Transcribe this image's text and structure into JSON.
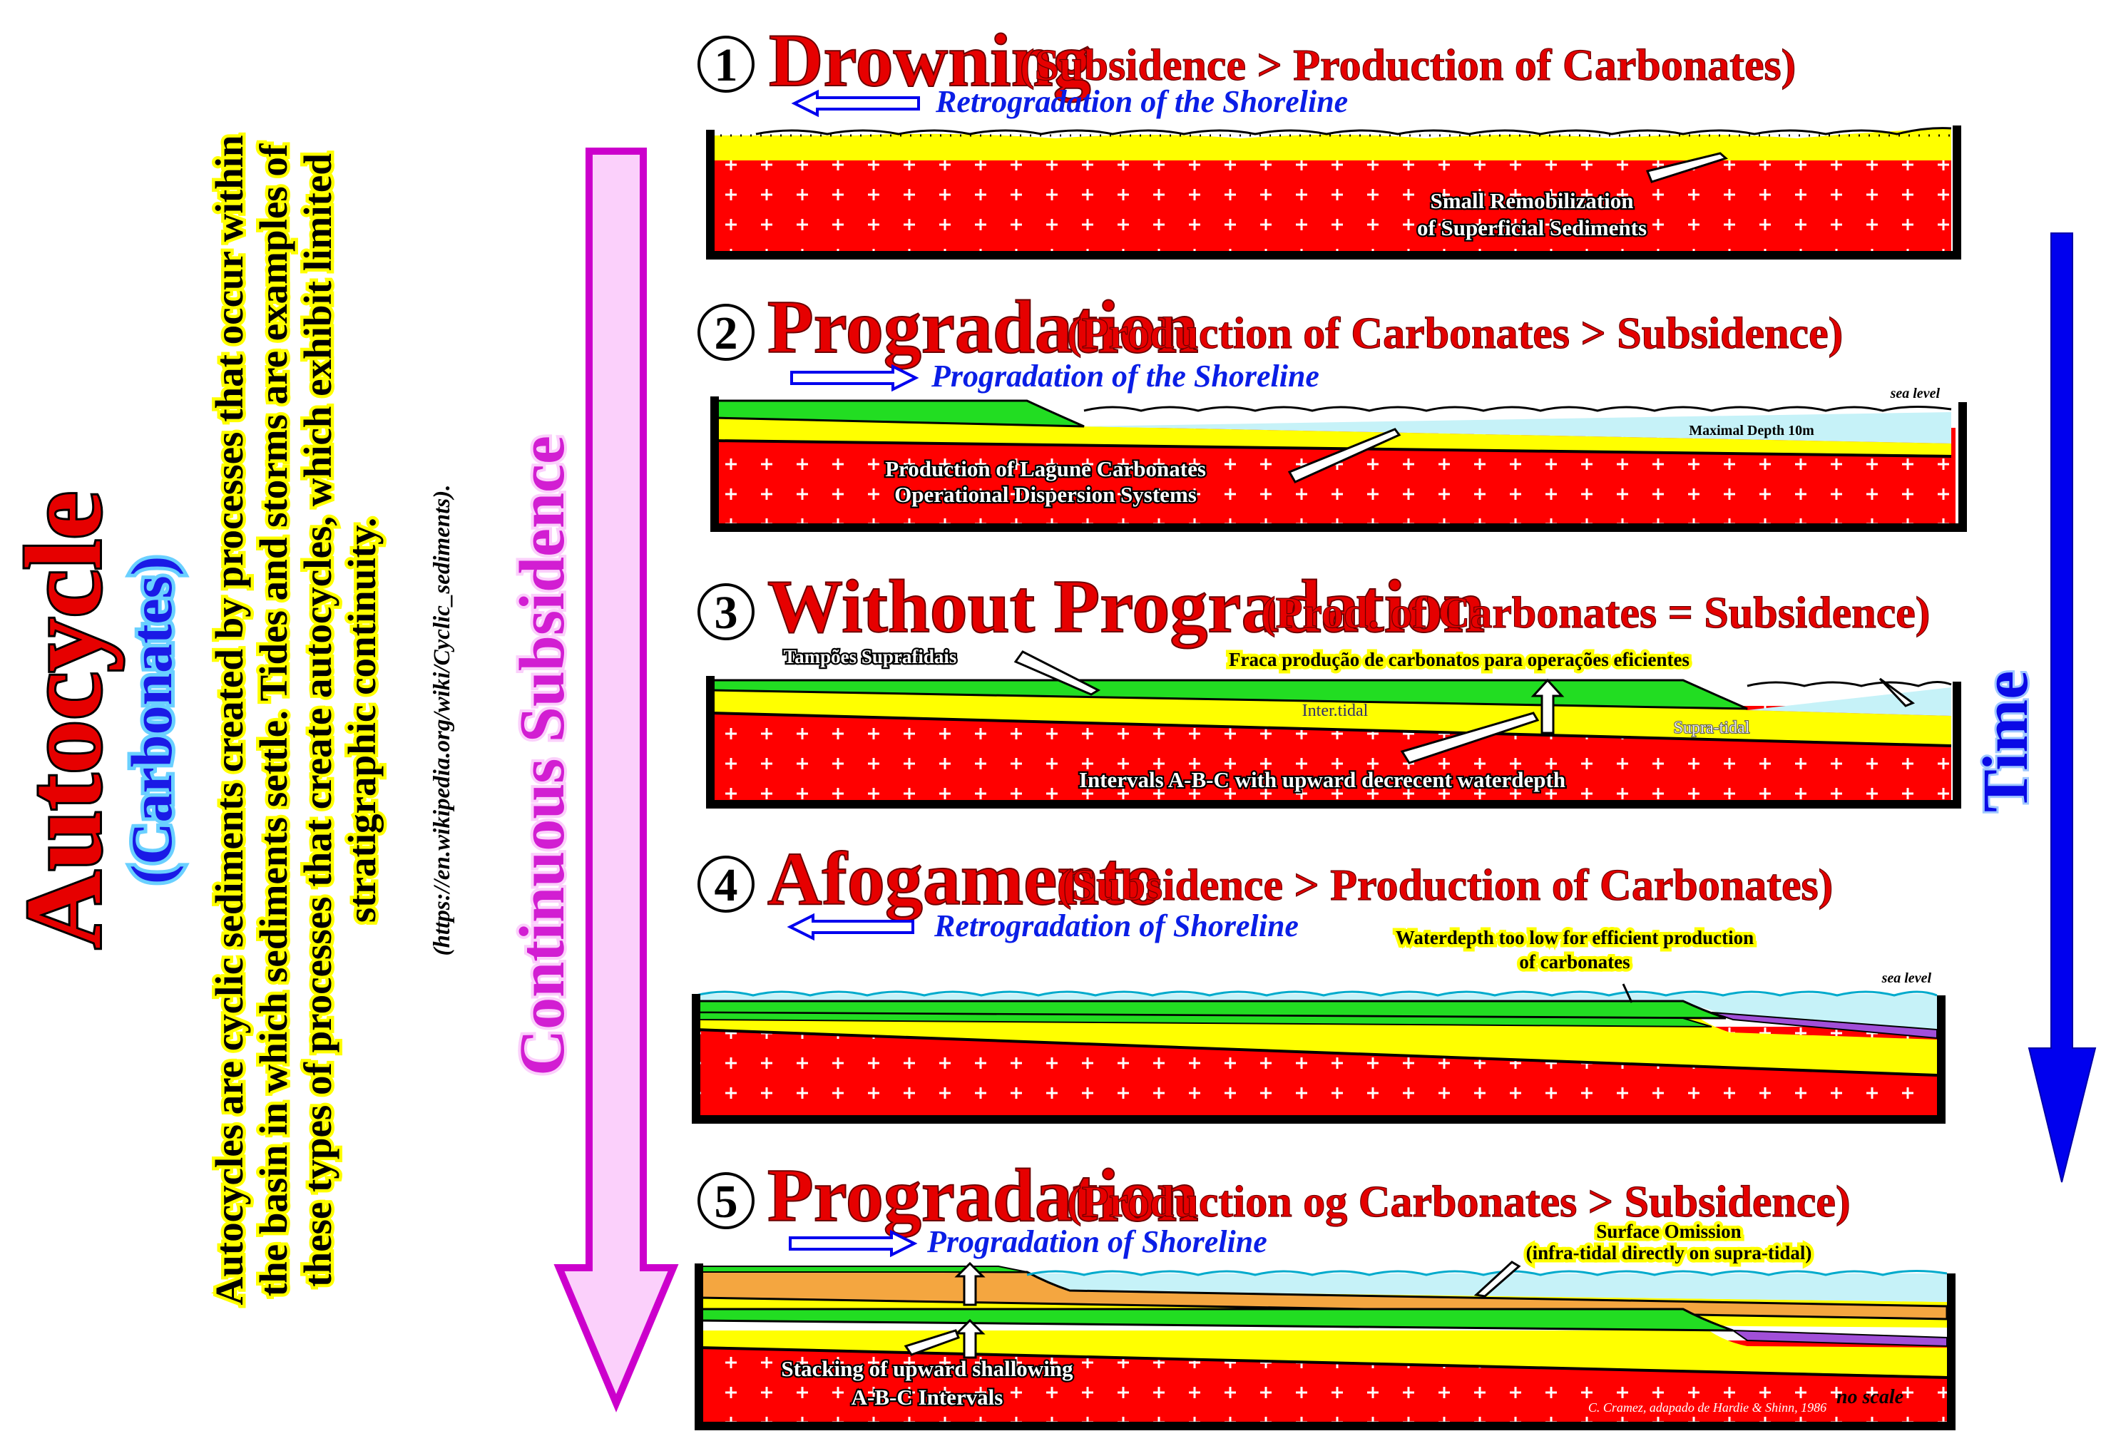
{
  "title": "Autocycle",
  "subtitle": "(Carbonates)",
  "description": [
    "Autocycles are cyclic sediments created by processes that occur within",
    "the basin in which sediments settle. Tides and storms are examples of",
    "these types of processes that create autocycles, which exhibit limited",
    "stratigraphic continuity."
  ],
  "source_url": "(https://en.wikipedia.org/wiki/Cyclic_sediments).",
  "continuous_label": "Continuous Subsidence",
  "time_label": "Time",
  "panels": [
    {
      "number": "1",
      "title": "Drowning",
      "subtitle": "(Subsidence > Production of Carbonates)",
      "shoreline": "Retrogradation of the Shoreline",
      "labels": [
        "Small Remobilization",
        "of Superficial  Sediments"
      ]
    },
    {
      "number": "2",
      "title": "Progradation",
      "subtitle": "(Production of Carbonates > Subsidence)",
      "shoreline": "Progradation of the Shoreline",
      "sea_level": "sea level",
      "max_depth": "Maximal Depth  10m",
      "labels": [
        "Production of Lagune Carbonates",
        "Operational Dispersion Systems"
      ]
    },
    {
      "number": "3",
      "title": "Without Progradation",
      "subtitle": "(Prod. of Carbonates = Subsidence)",
      "tampoes": "Tampões Suprafidais",
      "fraca": "Fraca produção de carbonatos para operações eficientes",
      "intertidal": "Inter.tidal",
      "supratidal": "Supra-tidal",
      "intervals": "Intervals  A-B-C  with upward decrecent waterdepth"
    },
    {
      "number": "4",
      "title": "Afogamento",
      "subtitle": "(Subsidence > Production of Carbonates)",
      "shoreline": "Retrogradation of Shoreline",
      "waterdepth": [
        "Waterdepth too low for efficient production",
        "of carbonates"
      ],
      "sea_level": "sea level"
    },
    {
      "number": "5",
      "title": "Progradation",
      "subtitle": "(Production og Carbonates > Subsidence)",
      "shoreline": "Progradation of Shoreline",
      "omission": [
        "Surface Omission",
        "(infra-tidal directly on supra-tidal)"
      ],
      "stacking": [
        "Stacking of upward shallowing",
        "A-B-C Intervals"
      ],
      "credit": "C. Cramez, adapado de Hardie & Shinn, 1986",
      "no_scale": "no scale"
    }
  ],
  "colors": {
    "basement": "#ff0000",
    "carbonate": "#ffff00",
    "supratidal": "#22dd22",
    "water": "#c6f2f8",
    "orange": "#f4a640",
    "purple": "#a14fd8",
    "subsidence_arrow": "#cc00cc",
    "time_arrow": "#0000ee"
  }
}
